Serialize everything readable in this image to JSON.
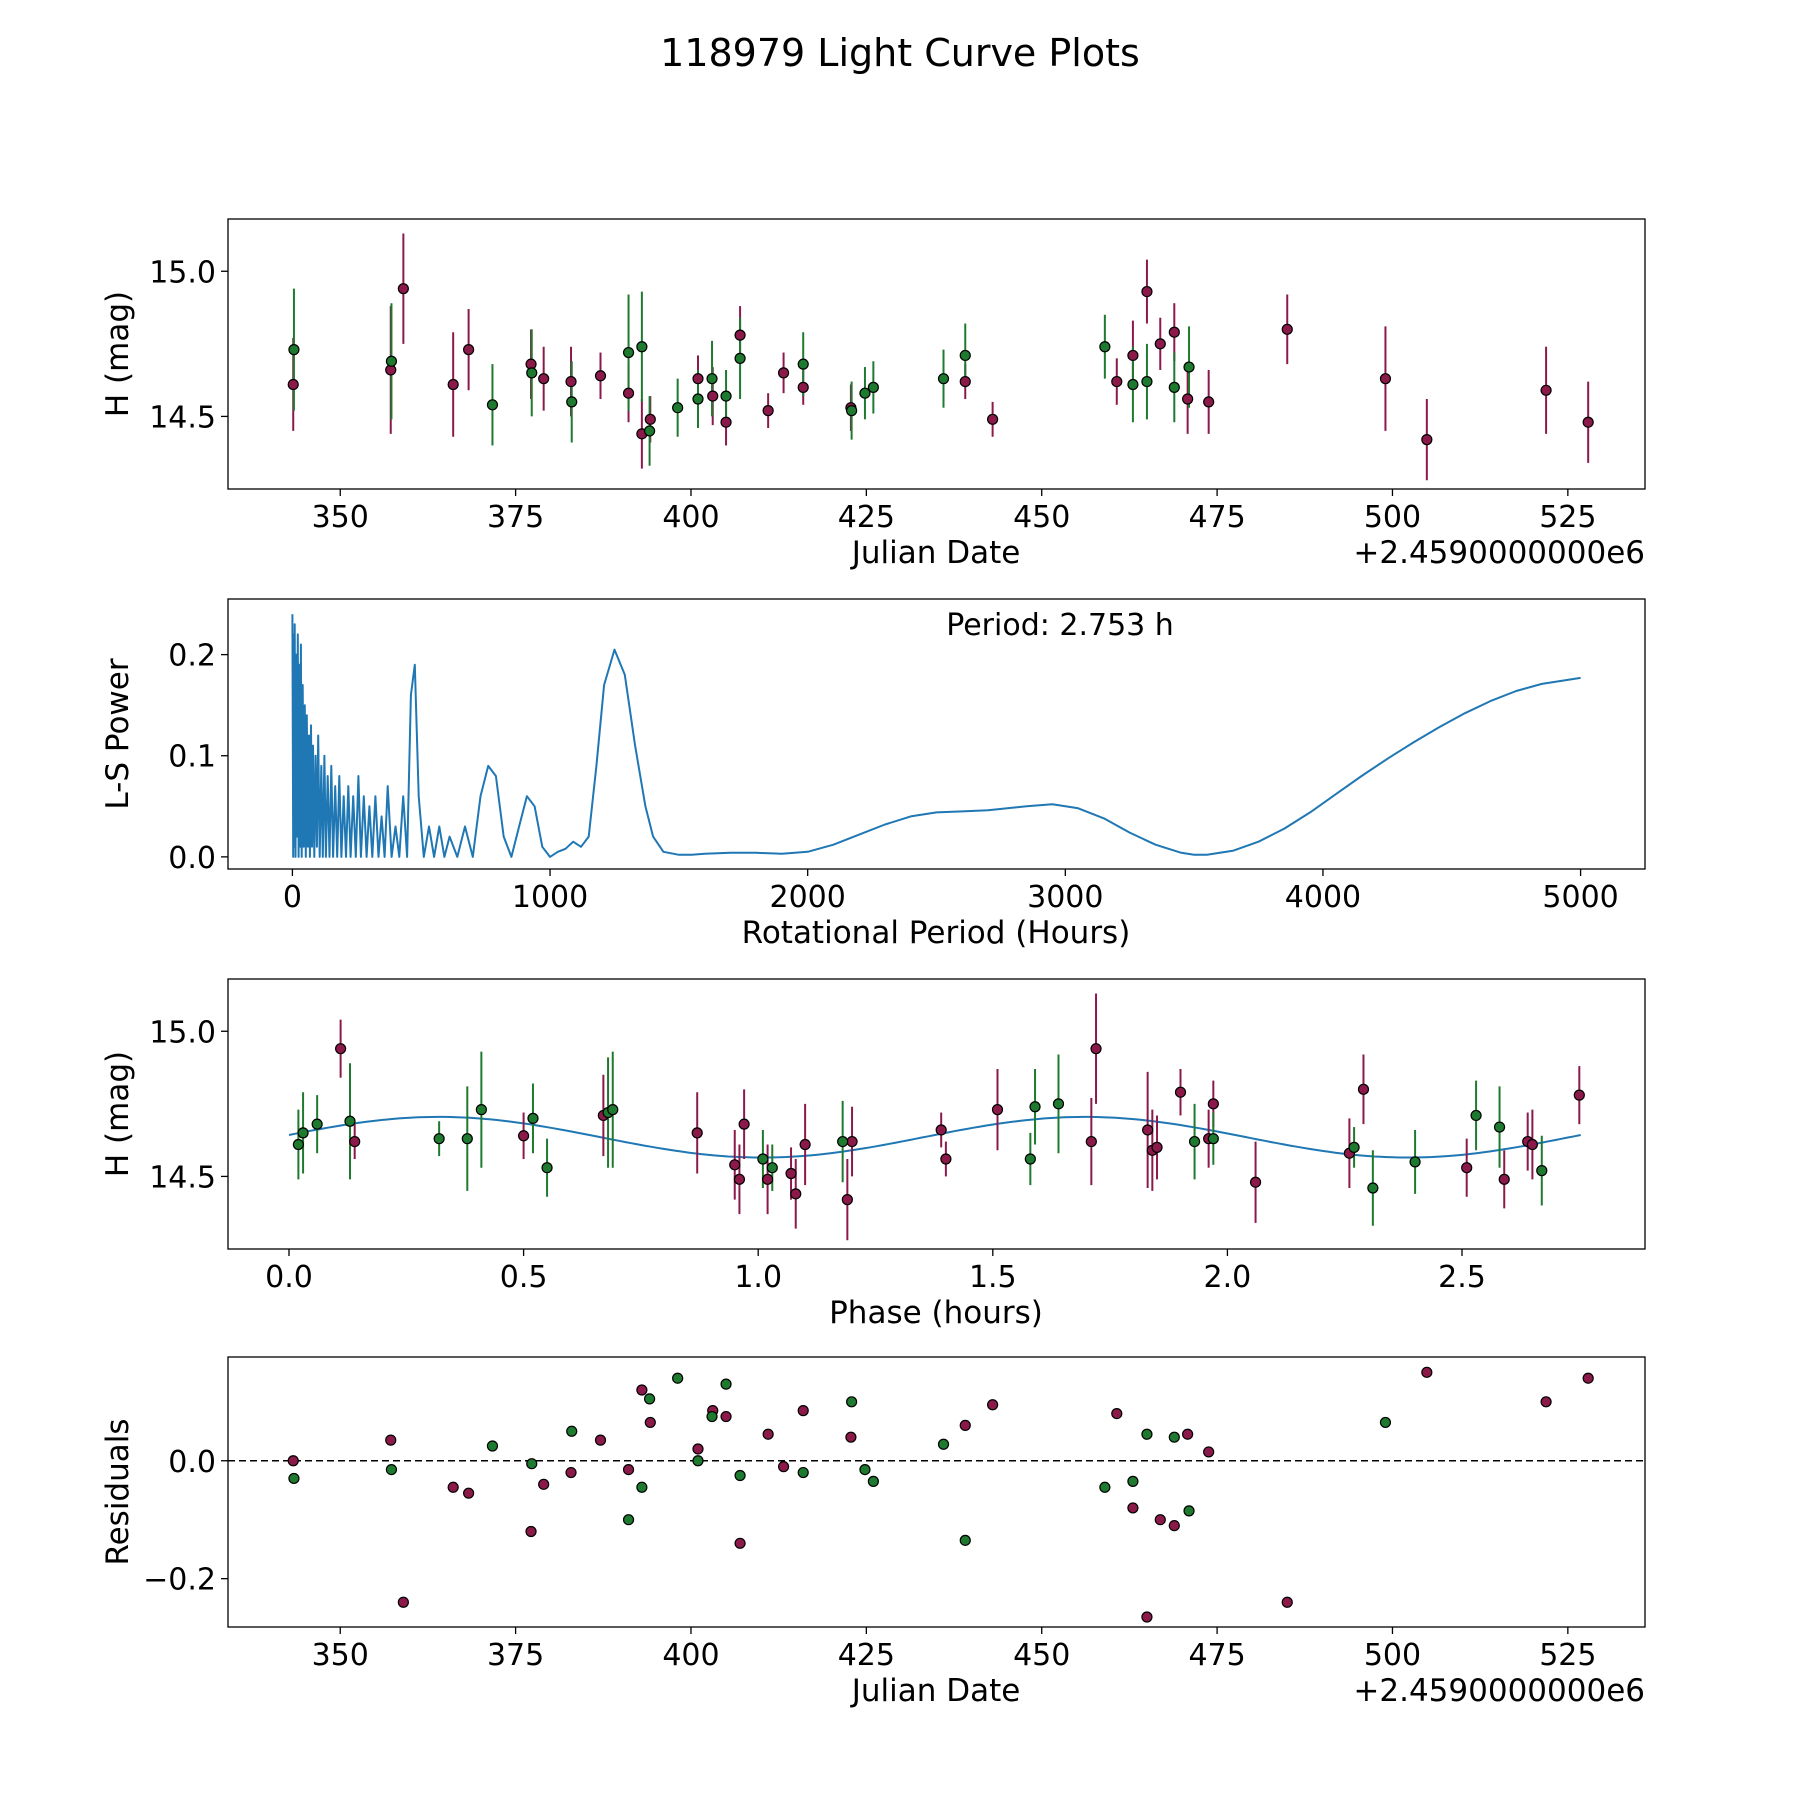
{
  "title": "118979 Light Curve Plots",
  "colors": {
    "series_a": "#8b1a4b",
    "series_b": "#1e7a2e",
    "periodogram": "#1f77b4"
  },
  "chart_data": [
    {
      "type": "scatter",
      "title": "",
      "xlabel": "Julian Date",
      "ylabel": "H (mag)",
      "offset_label": "+2.4590000000e6",
      "xlim": [
        334,
        536
      ],
      "ylim": [
        14.25,
        15.18
      ],
      "xticks": [
        350,
        375,
        400,
        425,
        450,
        475,
        500,
        525
      ],
      "xtick_labels": [
        "350",
        "375",
        "400",
        "425",
        "450",
        "475",
        "500",
        "525"
      ],
      "yticks": [
        14.5,
        15.0
      ],
      "ytick_labels": [
        "14.5",
        "15.0"
      ],
      "series": [
        {
          "name": "magenta",
          "color_key": "series_a",
          "x": [
            343.3,
            357.2,
            359.0,
            366.1,
            368.3,
            377.2,
            379.0,
            382.9,
            387.1,
            391.1,
            393.0,
            394.2,
            401.0,
            403.1,
            405.0,
            407.0,
            411.0,
            413.2,
            416.0,
            422.8,
            439.1,
            443.0,
            460.7,
            463.0,
            465.0,
            466.9,
            468.9,
            470.8,
            473.8,
            485.0,
            499.0,
            504.9,
            521.9,
            527.9
          ],
          "y": [
            14.61,
            14.66,
            14.94,
            14.61,
            14.73,
            14.68,
            14.63,
            14.62,
            14.64,
            14.58,
            14.44,
            14.49,
            14.63,
            14.57,
            14.48,
            14.78,
            14.52,
            14.65,
            14.6,
            14.53,
            14.62,
            14.49,
            14.62,
            14.71,
            14.93,
            14.75,
            14.79,
            14.56,
            14.55,
            14.8,
            14.63,
            14.42,
            14.59,
            14.48
          ],
          "err": [
            0.16,
            0.22,
            0.19,
            0.18,
            0.14,
            0.12,
            0.11,
            0.12,
            0.08,
            0.1,
            0.12,
            0.08,
            0.08,
            0.1,
            0.08,
            0.1,
            0.06,
            0.07,
            0.06,
            0.08,
            0.06,
            0.06,
            0.08,
            0.12,
            0.11,
            0.09,
            0.1,
            0.12,
            0.11,
            0.12,
            0.18,
            0.14,
            0.15,
            0.14
          ]
        },
        {
          "name": "green",
          "color_key": "series_b",
          "x": [
            343.4,
            357.3,
            371.7,
            377.3,
            383.0,
            391.1,
            393.0,
            394.1,
            398.1,
            401.0,
            403.0,
            405.0,
            407.0,
            416.0,
            422.9,
            424.8,
            426.0,
            436.0,
            439.1,
            459.0,
            463.0,
            465.0,
            468.9,
            471.0
          ],
          "y": [
            14.73,
            14.69,
            14.54,
            14.65,
            14.55,
            14.72,
            14.74,
            14.45,
            14.53,
            14.56,
            14.63,
            14.57,
            14.7,
            14.68,
            14.52,
            14.58,
            14.6,
            14.63,
            14.71,
            14.74,
            14.61,
            14.62,
            14.6,
            14.67
          ],
          "err": [
            0.21,
            0.2,
            0.14,
            0.15,
            0.14,
            0.2,
            0.19,
            0.12,
            0.1,
            0.1,
            0.13,
            0.09,
            0.14,
            0.11,
            0.1,
            0.09,
            0.09,
            0.1,
            0.11,
            0.11,
            0.13,
            0.13,
            0.12,
            0.14
          ]
        }
      ]
    },
    {
      "type": "line",
      "title": "",
      "xlabel": "Rotational Period (Hours)",
      "ylabel": "L-S Power",
      "annotation": "Period: 2.753 h",
      "xlim": [
        -250,
        5250
      ],
      "ylim": [
        -0.012,
        0.255
      ],
      "xticks": [
        0,
        1000,
        2000,
        3000,
        4000,
        5000
      ],
      "xtick_labels": [
        "0",
        "1000",
        "2000",
        "3000",
        "4000",
        "5000"
      ],
      "yticks": [
        0.0,
        0.1,
        0.2
      ],
      "ytick_labels": [
        "0.0",
        "0.1",
        "0.2"
      ],
      "series": [
        {
          "name": "L-S power",
          "x": [
            0,
            3,
            5,
            7,
            9,
            12,
            15,
            18,
            21,
            24,
            27,
            30,
            33,
            36,
            40,
            44,
            48,
            52,
            56,
            60,
            64,
            68,
            72,
            76,
            80,
            85,
            90,
            95,
            100,
            106,
            112,
            118,
            124,
            130,
            137,
            144,
            151,
            158,
            166,
            174,
            182,
            190,
            199,
            208,
            217,
            226,
            236,
            246,
            256,
            266,
            277,
            288,
            299,
            310,
            322,
            334,
            346,
            358,
            370,
            385,
            400,
            415,
            430,
            445,
            460,
            475,
            490,
            510,
            530,
            550,
            570,
            590,
            610,
            640,
            670,
            700,
            730,
            760,
            790,
            820,
            850,
            880,
            910,
            940,
            970,
            1000,
            1030,
            1060,
            1090,
            1120,
            1150,
            1180,
            1210,
            1250,
            1290,
            1330,
            1370,
            1400,
            1440,
            1500,
            1550,
            1600,
            1700,
            1800,
            1900,
            2000,
            2100,
            2200,
            2300,
            2400,
            2500,
            2600,
            2700,
            2850,
            2950,
            3050,
            3150,
            3250,
            3350,
            3450,
            3500,
            3550,
            3650,
            3750,
            3850,
            3950,
            4050,
            4150,
            4250,
            4350,
            4450,
            4550,
            4650,
            4750,
            4850,
            5000
          ],
          "y": [
            0.24,
            0.0,
            0.22,
            0.01,
            0.23,
            0.0,
            0.2,
            0.02,
            0.22,
            0.0,
            0.19,
            0.01,
            0.21,
            0.0,
            0.17,
            0.01,
            0.15,
            0.0,
            0.14,
            0.01,
            0.12,
            0.0,
            0.13,
            0.01,
            0.11,
            0.0,
            0.1,
            0.01,
            0.12,
            0.0,
            0.09,
            0.0,
            0.1,
            0.0,
            0.08,
            0.0,
            0.09,
            0.0,
            0.07,
            0.0,
            0.08,
            0.0,
            0.06,
            0.0,
            0.07,
            0.0,
            0.06,
            0.0,
            0.08,
            0.0,
            0.06,
            0.0,
            0.05,
            0.0,
            0.06,
            0.0,
            0.04,
            0.0,
            0.07,
            0.0,
            0.03,
            0.0,
            0.06,
            0.0,
            0.16,
            0.19,
            0.06,
            0.0,
            0.03,
            0.0,
            0.03,
            0.0,
            0.02,
            0.0,
            0.03,
            0.0,
            0.06,
            0.09,
            0.08,
            0.02,
            0.0,
            0.03,
            0.06,
            0.05,
            0.01,
            0.0,
            0.005,
            0.008,
            0.015,
            0.01,
            0.02,
            0.09,
            0.17,
            0.205,
            0.18,
            0.11,
            0.05,
            0.02,
            0.005,
            0.002,
            0.002,
            0.003,
            0.004,
            0.004,
            0.003,
            0.005,
            0.012,
            0.022,
            0.032,
            0.04,
            0.044,
            0.045,
            0.046,
            0.05,
            0.052,
            0.048,
            0.038,
            0.024,
            0.012,
            0.004,
            0.002,
            0.002,
            0.006,
            0.015,
            0.028,
            0.044,
            0.062,
            0.08,
            0.097,
            0.113,
            0.128,
            0.142,
            0.154,
            0.164,
            0.171,
            0.177
          ]
        }
      ]
    },
    {
      "type": "scatter",
      "title": "",
      "xlabel": "Phase (hours)",
      "ylabel": "H (mag)",
      "xlim": [
        -0.13,
        2.89
      ],
      "ylim": [
        14.25,
        15.18
      ],
      "xticks": [
        0.0,
        0.5,
        1.0,
        1.5,
        2.0,
        2.5
      ],
      "xtick_labels": [
        "0.0",
        "0.5",
        "1.0",
        "1.5",
        "2.0",
        "2.5"
      ],
      "yticks": [
        14.5,
        15.0
      ],
      "ytick_labels": [
        "14.5",
        "15.0"
      ],
      "fit": {
        "phase_max": 2.753,
        "mean": 14.635,
        "amplitude": 0.07,
        "peak_phase": 0.32
      },
      "series": [
        {
          "name": "magenta",
          "color_key": "series_a",
          "x": [
            0.11,
            0.14,
            0.5,
            0.67,
            0.87,
            0.95,
            0.96,
            0.97,
            1.02,
            1.07,
            1.08,
            1.1,
            1.19,
            1.2,
            1.39,
            1.4,
            1.51,
            1.71,
            1.72,
            1.83,
            1.84,
            1.85,
            1.9,
            1.96,
            1.97,
            2.06,
            2.26,
            2.29,
            2.51,
            2.59,
            2.64,
            2.65,
            2.75
          ],
          "y": [
            14.94,
            14.62,
            14.64,
            14.71,
            14.65,
            14.54,
            14.49,
            14.68,
            14.49,
            14.51,
            14.44,
            14.61,
            14.42,
            14.62,
            14.66,
            14.56,
            14.73,
            14.62,
            14.94,
            14.66,
            14.59,
            14.6,
            14.79,
            14.63,
            14.75,
            14.48,
            14.58,
            14.8,
            14.53,
            14.49,
            14.62,
            14.61,
            14.78
          ],
          "err": [
            0.1,
            0.06,
            0.08,
            0.14,
            0.14,
            0.12,
            0.12,
            0.12,
            0.12,
            0.09,
            0.12,
            0.14,
            0.14,
            0.12,
            0.06,
            0.06,
            0.14,
            0.15,
            0.19,
            0.2,
            0.14,
            0.11,
            0.08,
            0.1,
            0.08,
            0.14,
            0.12,
            0.12,
            0.1,
            0.1,
            0.1,
            0.12,
            0.1
          ]
        },
        {
          "name": "green",
          "color_key": "series_b",
          "x": [
            0.02,
            0.03,
            0.06,
            0.13,
            0.32,
            0.38,
            0.41,
            0.52,
            0.55,
            0.68,
            0.69,
            1.01,
            1.03,
            1.18,
            1.58,
            1.59,
            1.64,
            1.93,
            1.97,
            2.27,
            2.31,
            2.4,
            2.53,
            2.58,
            2.67
          ],
          "y": [
            14.61,
            14.65,
            14.68,
            14.69,
            14.63,
            14.63,
            14.73,
            14.7,
            14.53,
            14.72,
            14.73,
            14.56,
            14.53,
            14.62,
            14.56,
            14.74,
            14.75,
            14.62,
            14.63,
            14.6,
            14.46,
            14.55,
            14.71,
            14.67,
            14.52
          ],
          "err": [
            0.12,
            0.14,
            0.1,
            0.2,
            0.06,
            0.18,
            0.2,
            0.12,
            0.1,
            0.19,
            0.2,
            0.1,
            0.08,
            0.14,
            0.09,
            0.13,
            0.17,
            0.13,
            0.09,
            0.07,
            0.13,
            0.11,
            0.12,
            0.14,
            0.12
          ]
        }
      ]
    },
    {
      "type": "scatter",
      "title": "",
      "xlabel": "Julian Date",
      "ylabel": "Residuals",
      "offset_label": "+2.4590000000e6",
      "xlim": [
        334,
        536
      ],
      "ylim": [
        -0.282,
        0.176
      ],
      "xticks": [
        350,
        375,
        400,
        425,
        450,
        475,
        500,
        525
      ],
      "xtick_labels": [
        "350",
        "375",
        "400",
        "425",
        "450",
        "475",
        "500",
        "525"
      ],
      "yticks": [
        -0.2,
        0.0
      ],
      "ytick_labels": [
        "−0.2",
        "0.0"
      ],
      "zero_line": true,
      "series": [
        {
          "name": "magenta",
          "color_key": "series_a",
          "x": [
            343.3,
            357.2,
            359.0,
            366.1,
            368.3,
            377.2,
            379.0,
            382.9,
            387.1,
            391.1,
            393.0,
            394.2,
            401.0,
            403.1,
            405.0,
            407.0,
            411.0,
            413.2,
            416.0,
            422.8,
            439.1,
            443.0,
            460.7,
            463.0,
            465.0,
            466.9,
            468.9,
            470.8,
            473.8,
            485.0,
            504.9,
            521.9,
            527.9
          ],
          "y": [
            0.0,
            0.035,
            -0.24,
            -0.045,
            -0.055,
            -0.12,
            -0.04,
            -0.02,
            0.035,
            -0.015,
            0.12,
            0.065,
            0.02,
            0.085,
            0.075,
            -0.14,
            0.045,
            -0.01,
            0.085,
            0.04,
            0.06,
            0.095,
            0.08,
            -0.08,
            -0.265,
            -0.1,
            -0.11,
            0.045,
            0.015,
            -0.24,
            0.15,
            0.1,
            0.14
          ]
        },
        {
          "name": "green",
          "color_key": "series_b",
          "x": [
            343.4,
            357.3,
            371.7,
            377.3,
            383.0,
            391.1,
            393.0,
            394.1,
            398.1,
            401.0,
            403.0,
            405.0,
            407.0,
            416.0,
            422.9,
            424.8,
            426.0,
            436.0,
            439.1,
            459.0,
            463.0,
            465.0,
            468.9,
            471.0,
            499.0
          ],
          "y": [
            -0.03,
            -0.015,
            0.025,
            -0.005,
            0.05,
            -0.1,
            -0.045,
            0.105,
            0.14,
            0.0,
            0.075,
            0.13,
            -0.025,
            -0.02,
            0.1,
            -0.015,
            -0.035,
            0.028,
            -0.135,
            -0.045,
            -0.035,
            0.045,
            0.04,
            -0.085,
            0.065
          ]
        }
      ]
    }
  ]
}
